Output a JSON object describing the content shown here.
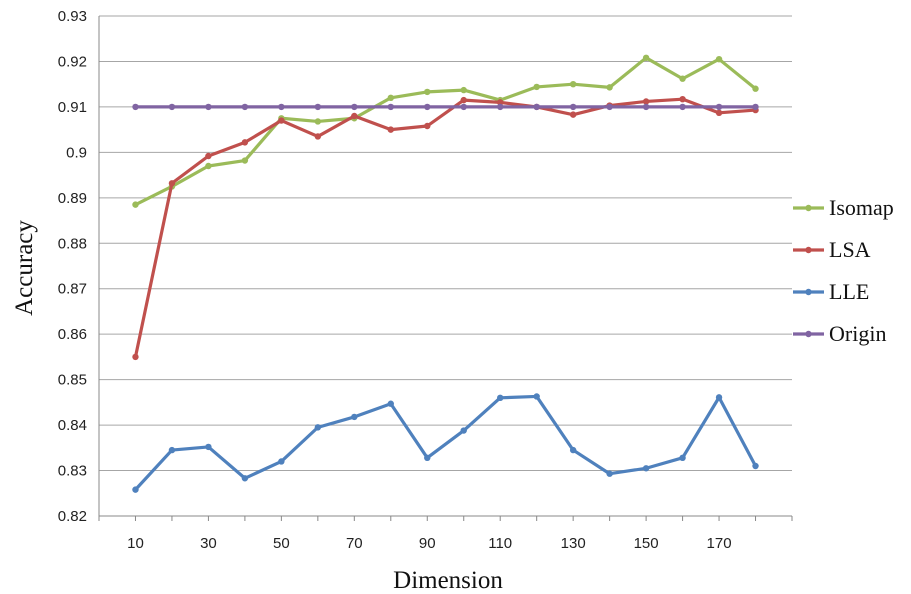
{
  "chart_data": {
    "type": "line",
    "xlabel": "Dimension",
    "ylabel": "Accuracy",
    "x": [
      10,
      20,
      30,
      40,
      50,
      60,
      70,
      80,
      90,
      100,
      110,
      120,
      130,
      140,
      150,
      160,
      170,
      180
    ],
    "x_tick_labels": [
      "10",
      "30",
      "50",
      "70",
      "90",
      "110",
      "130",
      "150",
      "170"
    ],
    "y_tick_labels": [
      "0.82",
      "0.83",
      "0.84",
      "0.85",
      "0.86",
      "0.87",
      "0.88",
      "0.89",
      "0.9",
      "0.91",
      "0.92",
      "0.93"
    ],
    "ylim": [
      0.82,
      0.93
    ],
    "grid": "horizontal",
    "legend_position": "right",
    "series": [
      {
        "name": "Isomap",
        "color": "#9bbb59",
        "values": [
          0.8885,
          0.8925,
          0.897,
          0.8982,
          0.9075,
          0.9068,
          0.9075,
          0.912,
          0.9133,
          0.9137,
          0.9115,
          0.9144,
          0.915,
          0.9143,
          0.9208,
          0.9162,
          0.9205,
          0.914
        ]
      },
      {
        "name": "LSA",
        "color": "#c0504d",
        "values": [
          0.855,
          0.8932,
          0.8992,
          0.9022,
          0.907,
          0.9035,
          0.908,
          0.905,
          0.9058,
          0.9115,
          0.911,
          0.91,
          0.9083,
          0.9103,
          0.9112,
          0.9117,
          0.9087,
          0.9093
        ]
      },
      {
        "name": "LLE",
        "color": "#4f81bd",
        "values": [
          0.8258,
          0.8345,
          0.8352,
          0.8283,
          0.832,
          0.8395,
          0.8418,
          0.8447,
          0.8328,
          0.8388,
          0.846,
          0.8463,
          0.8345,
          0.8293,
          0.8305,
          0.8328,
          0.8461,
          0.831
        ]
      },
      {
        "name": "Origin",
        "color": "#8064a2",
        "values": [
          0.91,
          0.91,
          0.91,
          0.91,
          0.91,
          0.91,
          0.91,
          0.91,
          0.91,
          0.91,
          0.91,
          0.91,
          0.91,
          0.91,
          0.91,
          0.91,
          0.91,
          0.91
        ]
      }
    ]
  }
}
